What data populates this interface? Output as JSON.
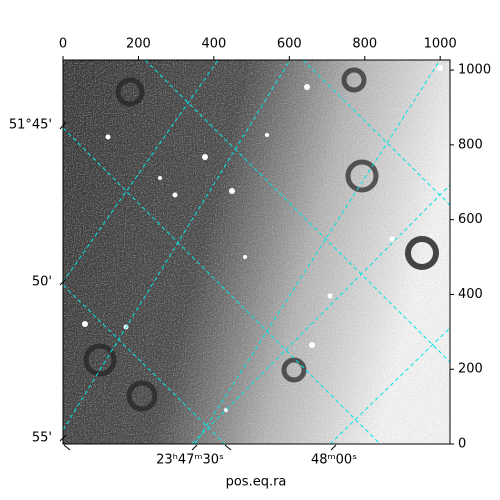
{
  "chart_data": {
    "type": "image",
    "xlabel": "pos.eq.ra",
    "xlim": [
      0,
      1026
    ],
    "ylim": [
      0,
      1027
    ],
    "xticks": [
      0,
      200,
      400,
      600,
      800,
      1000
    ],
    "yticks": [
      0,
      200,
      400,
      600,
      800,
      1000
    ],
    "ra_tick_labels": [
      "23ʰ47ᵐ30ˢ",
      "48ᵐ00ˢ"
    ],
    "dec_tick_labels": [
      "51°45'",
      "50'",
      "55'"
    ],
    "grid": true,
    "grid_color": "#00e5e5"
  }
}
